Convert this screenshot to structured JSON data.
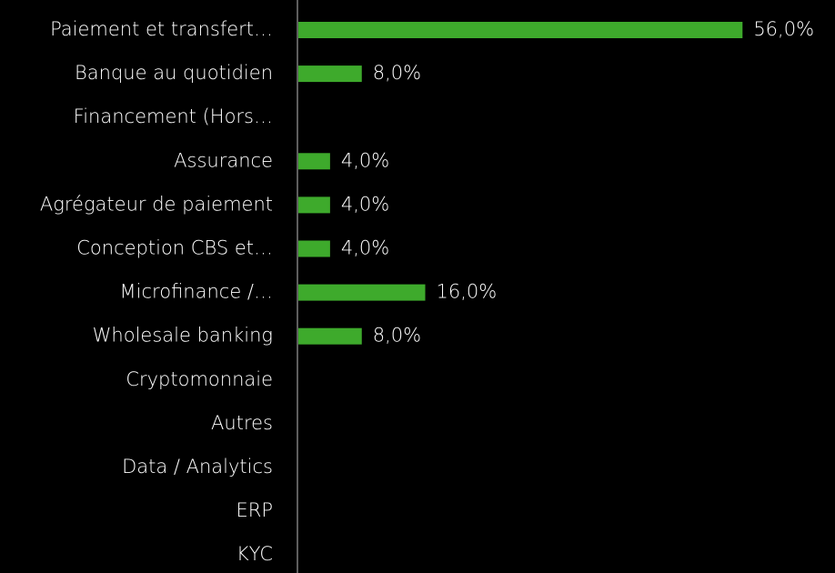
{
  "chart_data": {
    "type": "bar",
    "orientation": "horizontal",
    "categories": [
      "Paiement et transfert…",
      "Banque au quotidien",
      "Financement (Hors…",
      "Assurance",
      "Agrégateur de paiement",
      "Conception CBS et…",
      "Microfinance /…",
      "Wholesale banking",
      "Cryptomonnaie",
      "Autres",
      "Data / Analytics",
      "ERP",
      "KYC"
    ],
    "values": [
      56,
      8,
      null,
      4,
      4,
      4,
      16,
      8,
      null,
      null,
      null,
      null,
      null
    ],
    "value_labels": [
      "56,0%",
      "8,0%",
      null,
      "4,0%",
      "4,0%",
      "4,0%",
      "16,0%",
      "8,0%",
      null,
      null,
      null,
      null,
      null
    ],
    "color": "#3eaa2c"
  }
}
